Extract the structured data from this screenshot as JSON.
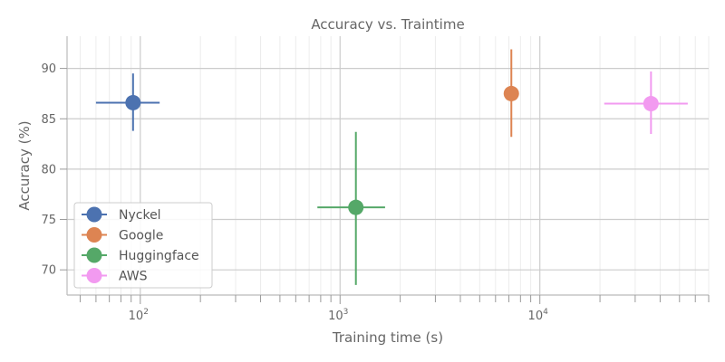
{
  "chart_data": {
    "type": "scatter",
    "title": "Accuracy vs. Traintime",
    "xlabel": "Training time (s)",
    "ylabel": "Accuracy (%)",
    "x_scale": "log",
    "xlim": [
      43,
      70000
    ],
    "ylim": [
      67.5,
      93.2
    ],
    "x_major_ticks": [
      100,
      1000,
      10000
    ],
    "x_tick_labels": [
      {
        "base": "10",
        "exp": "2"
      },
      {
        "base": "10",
        "exp": "3"
      },
      {
        "base": "10",
        "exp": "4"
      }
    ],
    "y_ticks": [
      70,
      75,
      80,
      85,
      90
    ],
    "y_tick_labels": [
      "70",
      "75",
      "80",
      "85",
      "90"
    ],
    "grid": true,
    "legend_position": "lower-left",
    "series": [
      {
        "name": "Nyckel",
        "color": "#4c72b0",
        "x": 92,
        "y": 86.6,
        "x_err": [
          60,
          125
        ],
        "y_err": [
          83.8,
          89.5
        ]
      },
      {
        "name": "Google",
        "color": "#dd8452",
        "x": 7200,
        "y": 87.5,
        "x_err": [
          7200,
          7200
        ],
        "y_err": [
          83.2,
          91.9
        ]
      },
      {
        "name": "Huggingface",
        "color": "#55a868",
        "x": 1200,
        "y": 76.2,
        "x_err": [
          770,
          1680
        ],
        "y_err": [
          68.5,
          83.7
        ]
      },
      {
        "name": "AWS",
        "color": "#f29af0",
        "x": 36000,
        "y": 86.5,
        "x_err": [
          21000,
          55000
        ],
        "y_err": [
          83.5,
          89.7
        ]
      }
    ]
  }
}
